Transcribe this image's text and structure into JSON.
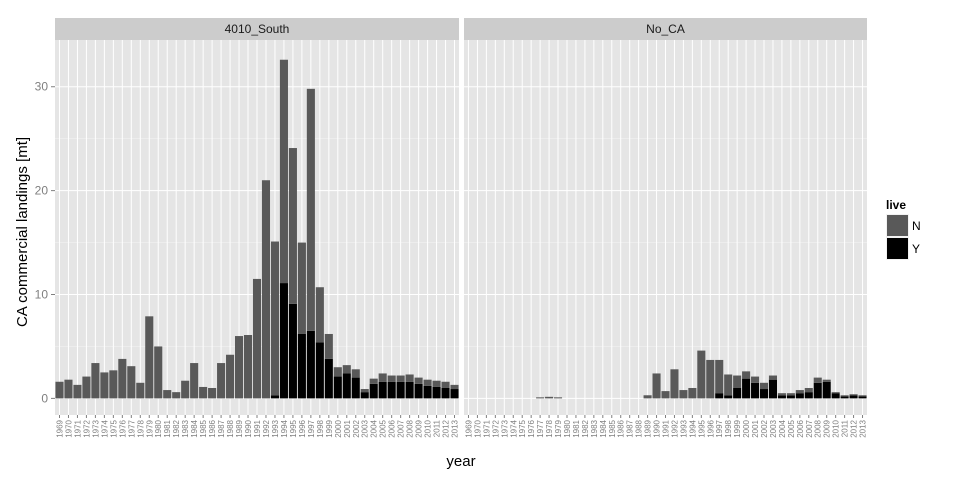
{
  "chart_data": {
    "type": "bar",
    "stacked": true,
    "xlabel": "year",
    "ylabel": "CA commercial landings [mt]",
    "ylim": [
      -1.6,
      34.5
    ],
    "yticks": [
      0,
      10,
      20,
      30
    ],
    "grid": true,
    "legend": {
      "title": "live",
      "placement": "right",
      "entries": [
        "N",
        "Y"
      ]
    },
    "colors": {
      "N": "#595959",
      "Y": "#000000",
      "panel": "#e5e5e5",
      "strip": "#cccccc",
      "grid": "#f2f2f2"
    },
    "categories": [
      "1969",
      "1970",
      "1971",
      "1972",
      "1973",
      "1974",
      "1975",
      "1976",
      "1977",
      "1978",
      "1979",
      "1980",
      "1981",
      "1982",
      "1983",
      "1984",
      "1985",
      "1986",
      "1987",
      "1988",
      "1989",
      "1990",
      "1991",
      "1992",
      "1993",
      "1994",
      "1995",
      "1996",
      "1997",
      "1998",
      "1999",
      "2000",
      "2001",
      "2002",
      "2003",
      "2004",
      "2005",
      "2006",
      "2007",
      "2008",
      "2009",
      "2010",
      "2011",
      "2012",
      "2013"
    ],
    "panels": [
      {
        "name": "4010_South",
        "series": [
          {
            "name": "N",
            "values": [
              1.6,
              1.8,
              1.3,
              2.1,
              3.4,
              2.5,
              2.7,
              3.8,
              3.1,
              1.5,
              7.9,
              5.0,
              0.8,
              0.6,
              1.7,
              3.4,
              1.1,
              1.0,
              3.4,
              4.2,
              6.0,
              6.1,
              11.5,
              21.0,
              14.8,
              21.5,
              15.0,
              8.8,
              23.3,
              5.3,
              2.4,
              0.9,
              0.8,
              0.8,
              0.3,
              0.5,
              0.8,
              0.6,
              0.6,
              0.7,
              0.6,
              0.6,
              0.6,
              0.6,
              0.4
            ]
          },
          {
            "name": "Y",
            "values": [
              0,
              0,
              0,
              0,
              0,
              0,
              0,
              0,
              0,
              0,
              0,
              0,
              0,
              0,
              0,
              0,
              0,
              0,
              0,
              0,
              0,
              0,
              0,
              0,
              0.3,
              11.1,
              9.1,
              6.2,
              6.5,
              5.4,
              3.8,
              2.1,
              2.4,
              2.0,
              0.6,
              1.4,
              1.6,
              1.6,
              1.6,
              1.6,
              1.4,
              1.2,
              1.1,
              1.0,
              0.9
            ]
          }
        ]
      },
      {
        "name": "No_CA",
        "series": [
          {
            "name": "N",
            "values": [
              0,
              0,
              0,
              0,
              0,
              0,
              0,
              0,
              0.1,
              0.15,
              0.1,
              0,
              0,
              0,
              0,
              0,
              0,
              0,
              0,
              0,
              0.3,
              2.4,
              0.7,
              2.8,
              0.8,
              1.0,
              4.6,
              3.7,
              3.2,
              2.0,
              1.2,
              0.7,
              0.6,
              0.6,
              0.4,
              0.2,
              0.2,
              0.3,
              0.4,
              0.5,
              0.2,
              0.1,
              0.1,
              0.1,
              0.1
            ]
          },
          {
            "name": "Y",
            "values": [
              0,
              0,
              0,
              0,
              0,
              0,
              0,
              0,
              0,
              0,
              0,
              0,
              0,
              0,
              0,
              0,
              0,
              0,
              0,
              0,
              0,
              0,
              0,
              0,
              0,
              0,
              0,
              0,
              0.5,
              0.3,
              1.0,
              1.9,
              1.5,
              0.9,
              1.8,
              0.3,
              0.3,
              0.5,
              0.6,
              1.5,
              1.6,
              0.5,
              0.2,
              0.3,
              0.2
            ]
          }
        ]
      }
    ]
  }
}
